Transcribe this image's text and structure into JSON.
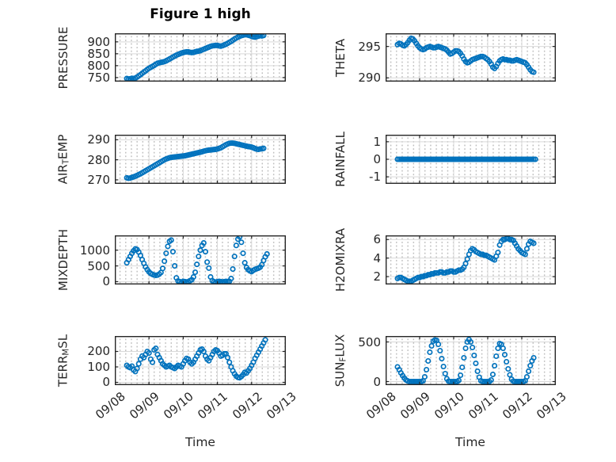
{
  "figure": {
    "title": "Figure 1 high",
    "background": "#ffffff"
  },
  "style": {
    "marker_color": "#0072BD",
    "axis_color": "#262626",
    "major_grid_color": "#d9d9d9",
    "text_color": "#262626",
    "title_color": "#000000"
  },
  "x_axis": {
    "label": "Time",
    "tick_labels": [
      "09/08",
      "09/09",
      "09/10",
      "09/11",
      "09/12",
      "09/13"
    ],
    "tick_values": [
      0,
      1,
      2,
      3,
      4,
      5
    ],
    "lim": [
      0,
      5
    ]
  },
  "chart_data": {
    "type": "scatter",
    "marker": "open-circle",
    "x_unit": "days since 09/08 00:00",
    "t": [
      0.35,
      0.4,
      0.45,
      0.5,
      0.55,
      0.6,
      0.65,
      0.7,
      0.75,
      0.8,
      0.85,
      0.9,
      0.95,
      1,
      1.05,
      1.1,
      1.15,
      1.2,
      1.25,
      1.3,
      1.35,
      1.4,
      1.45,
      1.5,
      1.55,
      1.6,
      1.65,
      1.7,
      1.75,
      1.8,
      1.85,
      1.9,
      1.95,
      2,
      2.05,
      2.1,
      2.15,
      2.2,
      2.25,
      2.3,
      2.35,
      2.4,
      2.45,
      2.5,
      2.55,
      2.6,
      2.65,
      2.7,
      2.75,
      2.8,
      2.85,
      2.9,
      2.95,
      3,
      3.05,
      3.1,
      3.15,
      3.2,
      3.25,
      3.3,
      3.35,
      3.4,
      3.45,
      3.5,
      3.55,
      3.6,
      3.65,
      3.7,
      3.75,
      3.8,
      3.85,
      3.9,
      3.95,
      4,
      4.05,
      4.1,
      4.15,
      4.2,
      4.25,
      4.3,
      4.35,
      4.4,
      4.45
    ],
    "series": [
      {
        "id": "pressure",
        "col": 0,
        "row": 0,
        "label_parts": [
          {
            "text": "PRESSURE"
          }
        ],
        "yticks": [
          750,
          800,
          850,
          900
        ],
        "ylim": [
          733,
          936
        ],
        "values": [
          746,
          744,
          745,
          747,
          746,
          748,
          752,
          757,
          762,
          768,
          773,
          778,
          784,
          789,
          793,
          797,
          801,
          806,
          810,
          812,
          814,
          815,
          817,
          820,
          824,
          828,
          832,
          836,
          840,
          844,
          847,
          850,
          853,
          855,
          857,
          858,
          858,
          856,
          855,
          856,
          858,
          860,
          861,
          863,
          866,
          869,
          872,
          875,
          878,
          881,
          883,
          884,
          885,
          885,
          883,
          882,
          884,
          887,
          890,
          894,
          898,
          902,
          907,
          912,
          916,
          920,
          923,
          926,
          928,
          930,
          930,
          928,
          926,
          923,
          921,
          920,
          922,
          924,
          926,
          925,
          927,
          null,
          null
        ]
      },
      {
        "id": "theta",
        "col": 1,
        "row": 0,
        "label_parts": [
          {
            "text": "THETA"
          }
        ],
        "yticks": [
          290,
          295
        ],
        "ylim": [
          289.4,
          297.1
        ],
        "values": [
          295.3,
          295.5,
          295.4,
          295.2,
          295.1,
          295.3,
          295.6,
          296.0,
          296.3,
          296.2,
          295.9,
          295.5,
          295.1,
          294.8,
          294.6,
          294.5,
          294.6,
          294.8,
          294.9,
          295.0,
          294.9,
          294.8,
          294.8,
          294.9,
          295.0,
          294.9,
          294.8,
          294.7,
          294.6,
          294.4,
          294.1,
          293.8,
          293.9,
          294.1,
          294.3,
          294.3,
          294.2,
          293.9,
          293.5,
          293.0,
          292.6,
          292.4,
          292.5,
          292.7,
          292.9,
          293.0,
          293.1,
          293.2,
          293.3,
          293.4,
          293.4,
          293.3,
          293.1,
          292.9,
          292.6,
          292.2,
          291.7,
          291.5,
          291.8,
          292.3,
          292.7,
          292.9,
          293.0,
          292.9,
          292.9,
          292.8,
          292.8,
          292.7,
          292.7,
          292.8,
          292.9,
          292.8,
          292.7,
          292.6,
          292.5,
          292.4,
          292.1,
          291.7,
          291.3,
          291.0,
          290.9,
          null,
          null
        ]
      },
      {
        "id": "air-temp",
        "col": 0,
        "row": 1,
        "label_parts": [
          {
            "text": "AIR"
          },
          {
            "text": "T",
            "sub": true
          },
          {
            "text": "EMP"
          }
        ],
        "yticks": [
          270,
          280,
          290
        ],
        "ylim": [
          268,
          292.5
        ],
        "values": [
          271.0,
          270.8,
          270.9,
          271.2,
          271.5,
          271.8,
          272.2,
          272.6,
          273.0,
          273.5,
          274.0,
          274.5,
          275.0,
          275.5,
          276.0,
          276.5,
          277.0,
          277.5,
          278.0,
          278.5,
          279.0,
          279.5,
          280.0,
          280.4,
          280.7,
          281.0,
          281.2,
          281.3,
          281.4,
          281.5,
          281.6,
          281.7,
          281.8,
          281.9,
          282.0,
          282.2,
          282.4,
          282.6,
          282.8,
          283.0,
          283.2,
          283.4,
          283.6,
          283.8,
          284.0,
          284.3,
          284.5,
          284.7,
          284.8,
          284.9,
          285.0,
          285.1,
          285.2,
          285.4,
          285.7,
          286.0,
          286.5,
          287.0,
          287.5,
          287.9,
          288.2,
          288.3,
          288.3,
          288.2,
          288.0,
          287.8,
          287.6,
          287.4,
          287.2,
          287.0,
          286.8,
          286.6,
          286.5,
          286.3,
          286.0,
          285.6,
          285.3,
          285.2,
          285.4,
          285.5,
          285.7,
          null,
          null
        ]
      },
      {
        "id": "rainfall",
        "col": 1,
        "row": 1,
        "label_parts": [
          {
            "text": "RAINFALL"
          }
        ],
        "yticks": [
          -1,
          0,
          1
        ],
        "ylim": [
          -1.4,
          1.4
        ],
        "values": [
          0,
          0,
          0,
          0,
          0,
          0,
          0,
          0,
          0,
          0,
          0,
          0,
          0,
          0,
          0,
          0,
          0,
          0,
          0,
          0,
          0,
          0,
          0,
          0,
          0,
          0,
          0,
          0,
          0,
          0,
          0,
          0,
          0,
          0,
          0,
          0,
          0,
          0,
          0,
          0,
          0,
          0,
          0,
          0,
          0,
          0,
          0,
          0,
          0,
          0,
          0,
          0,
          0,
          0,
          0,
          0,
          0,
          0,
          0,
          0,
          0,
          0,
          0,
          0,
          0,
          0,
          0,
          0,
          0,
          0,
          0,
          0,
          0,
          0,
          0,
          0,
          0,
          0,
          0,
          0,
          0,
          0,
          null
        ]
      },
      {
        "id": "mixdepth",
        "col": 0,
        "row": 2,
        "label_parts": [
          {
            "text": "MIXDEPTH"
          }
        ],
        "yticks": [
          0,
          500,
          1000
        ],
        "ylim": [
          -90,
          1470
        ],
        "values": [
          600,
          700,
          800,
          900,
          980,
          1040,
          1020,
          940,
          830,
          700,
          580,
          470,
          380,
          310,
          260,
          230,
          210,
          200,
          210,
          240,
          290,
          420,
          650,
          900,
          1120,
          1280,
          1320,
          950,
          500,
          120,
          20,
          0,
          -20,
          10,
          0,
          -10,
          0,
          30,
          60,
          150,
          300,
          550,
          800,
          1000,
          1150,
          1230,
          950,
          620,
          430,
          150,
          30,
          0,
          -20,
          0,
          10,
          0,
          -10,
          0,
          10,
          0,
          10,
          100,
          400,
          800,
          1150,
          1350,
          1420,
          1250,
          900,
          600,
          450,
          380,
          340,
          320,
          360,
          390,
          410,
          430,
          460,
          540,
          670,
          790,
          880
        ]
      },
      {
        "id": "h2omixra",
        "col": 1,
        "row": 2,
        "label_parts": [
          {
            "text": "H2OMIXRA"
          }
        ],
        "yticks": [
          2,
          4,
          6
        ],
        "ylim": [
          1.15,
          6.45
        ],
        "values": [
          1.8,
          1.9,
          1.9,
          1.8,
          1.7,
          1.6,
          1.5,
          1.5,
          1.5,
          1.6,
          1.7,
          1.8,
          1.9,
          1.9,
          2.0,
          2.0,
          2.1,
          2.1,
          2.2,
          2.2,
          2.3,
          2.3,
          2.4,
          2.4,
          2.4,
          2.5,
          2.5,
          2.4,
          2.4,
          2.5,
          2.5,
          2.6,
          2.6,
          2.5,
          2.5,
          2.6,
          2.7,
          2.7,
          2.8,
          3.0,
          3.4,
          3.9,
          4.4,
          4.8,
          5.0,
          4.9,
          4.7,
          4.6,
          4.5,
          4.4,
          4.4,
          4.3,
          4.3,
          4.2,
          4.1,
          4.0,
          3.9,
          3.8,
          4.2,
          4.6,
          5.4,
          5.8,
          6.0,
          6.0,
          6.1,
          6.1,
          6.0,
          6.0,
          5.9,
          5.6,
          5.3,
          5.0,
          4.8,
          4.6,
          4.5,
          4.4,
          5.0,
          5.5,
          5.8,
          5.7,
          5.6,
          null,
          null
        ]
      },
      {
        "id": "terr-msl",
        "col": 0,
        "row": 3,
        "label_parts": [
          {
            "text": "TERR"
          },
          {
            "text": "M",
            "sub": true
          },
          {
            "text": "SL"
          }
        ],
        "yticks": [
          0,
          100,
          200
        ],
        "ylim": [
          -18,
          300
        ],
        "values": [
          110,
          100,
          95,
          105,
          80,
          70,
          90,
          120,
          150,
          170,
          160,
          180,
          200,
          190,
          150,
          130,
          210,
          220,
          180,
          160,
          140,
          120,
          110,
          100,
          105,
          110,
          100,
          95,
          90,
          100,
          110,
          105,
          100,
          120,
          140,
          155,
          150,
          130,
          120,
          130,
          150,
          170,
          190,
          210,
          215,
          200,
          170,
          150,
          140,
          160,
          180,
          200,
          210,
          205,
          190,
          170,
          175,
          185,
          185,
          160,
          130,
          100,
          75,
          55,
          40,
          32,
          30,
          38,
          50,
          65,
          60,
          75,
          90,
          110,
          130,
          155,
          175,
          195,
          215,
          235,
          255,
          275,
          null
        ]
      },
      {
        "id": "sun-flux",
        "col": 1,
        "row": 3,
        "label_parts": [
          {
            "text": "SUN"
          },
          {
            "text": "F",
            "sub": true
          },
          {
            "text": "LUX"
          }
        ],
        "yticks": [
          0,
          500
        ],
        "ylim": [
          -45,
          575
        ],
        "values": [
          185,
          150,
          110,
          75,
          45,
          20,
          8,
          0,
          0,
          0,
          0,
          0,
          0,
          0,
          0,
          10,
          60,
          150,
          260,
          370,
          450,
          510,
          525,
          520,
          470,
          390,
          290,
          190,
          100,
          35,
          5,
          0,
          0,
          0,
          0,
          0,
          15,
          80,
          180,
          300,
          420,
          500,
          530,
          500,
          430,
          330,
          230,
          130,
          55,
          10,
          0,
          0,
          0,
          0,
          0,
          20,
          90,
          200,
          320,
          420,
          480,
          470,
          420,
          340,
          250,
          160,
          85,
          30,
          5,
          0,
          0,
          0,
          0,
          0,
          0,
          10,
          60,
          130,
          200,
          260,
          300,
          null,
          null
        ]
      }
    ]
  }
}
